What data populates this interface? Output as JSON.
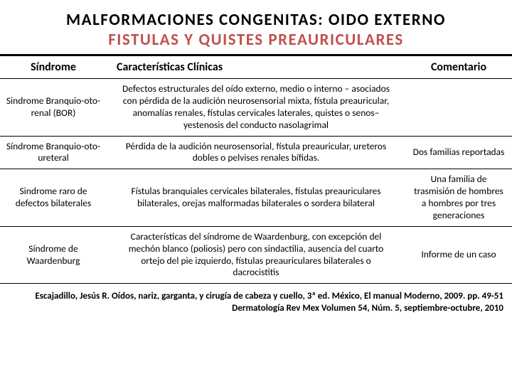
{
  "header": {
    "title_line1": "MALFORMACIONES CONGENITAS: OIDO EXTERNO",
    "title_line2": "FISTULAS Y QUISTES PREAURICULARES"
  },
  "table": {
    "columns": [
      "Síndrome",
      "Características Clínicas",
      "Comentario"
    ],
    "rows": [
      {
        "syndrome": "Sindrome Branquio-oto-renal (BOR)",
        "features": "Defectos estructurales del oído externo, medio o interno – asociados con pérdida de la audición neurosensorial mixta, fístula preauricular, anomalías renales, fístulas cervicales laterales, quistes o senos– yestenosis del conducto nasolagrimal",
        "comment": ""
      },
      {
        "syndrome": "Síndrome Branquio-oto-ureteral",
        "features": "Pérdida de la audición neurosensorial, fístula preauricular, ureteros dobles o pelvises renales bífidas.",
        "comment": "Dos familias reportadas"
      },
      {
        "syndrome": "Sindrome raro de defectos bilaterales",
        "features": "Fístulas branquiales cervicales bilaterales, fístulas preauriculares bilaterales, orejas malformadas bilaterales o sordera bilateral",
        "comment": "Una familia de trasmisión de hombres a hombres por tres generaciones"
      },
      {
        "syndrome": "Síndrome de Waardenburg",
        "features": "Características del síndrome de Waardenburg, con excepción del mechón blanco (poliosis) pero con sindactilia, ausencia del cuarto ortejo del pie izquierdo, fístulas preauriculares bilaterales o dacrocistitis",
        "comment": "Informe de un caso"
      }
    ]
  },
  "references": {
    "line1": "Escajadillo, Jesús R. Oídos, nariz, garganta, y cirugía de cabeza y cuello, 3ª ed. México, El manual Moderno, 2009. pp. 49-51",
    "line2": "Dermatología Rev Mex Volumen 54, Núm. 5, septiembre-octubre, 2010"
  },
  "colors": {
    "title_accent": "#c0504d",
    "text": "#000000",
    "background": "#ffffff",
    "border": "#000000"
  }
}
